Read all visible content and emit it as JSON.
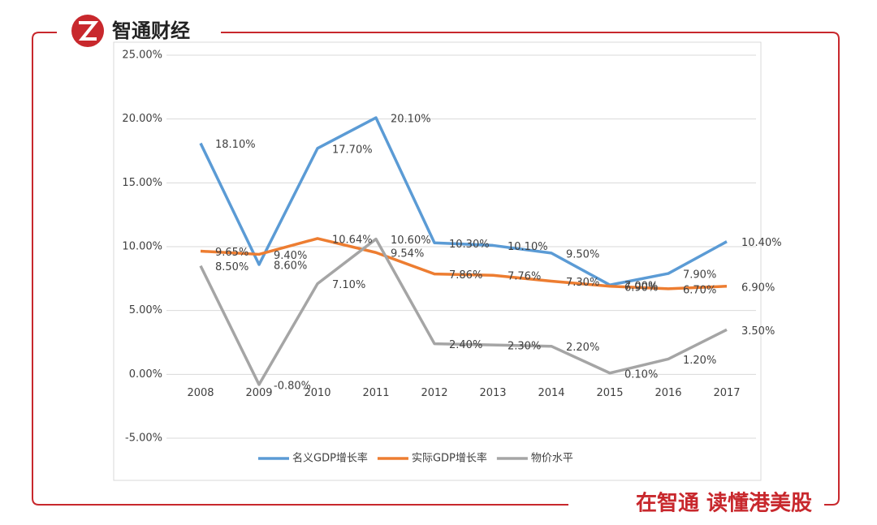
{
  "header": {
    "brand": "智通财经"
  },
  "footer": {
    "slogan": "在智通 读懂港美股"
  },
  "chart_data": {
    "type": "line",
    "categories": [
      "2008",
      "2009",
      "2010",
      "2011",
      "2012",
      "2013",
      "2014",
      "2015",
      "2016",
      "2017"
    ],
    "series": [
      {
        "name": "名义GDP增长率",
        "color": "#5b9bd5",
        "values": [
          18.1,
          8.6,
          17.7,
          20.1,
          10.3,
          10.1,
          9.5,
          7.0,
          7.9,
          10.4
        ],
        "value_labels": [
          "18.10%",
          "8.60%",
          "17.70%",
          "20.10%",
          "10.30%",
          "10.10%",
          "9.50%",
          "7.00%",
          "7.90%",
          "10.40%"
        ]
      },
      {
        "name": "实际GDP增长率",
        "color": "#ed7d31",
        "values": [
          9.65,
          9.4,
          10.64,
          9.54,
          7.86,
          7.76,
          7.3,
          6.9,
          6.7,
          6.9
        ],
        "value_labels": [
          "9.65%",
          "9.40%",
          "10.64%",
          "9.54%",
          "7.86%",
          "7.76%",
          "7.30%",
          "6.90%",
          "6.70%",
          "6.90%"
        ]
      },
      {
        "name": "物价水平",
        "color": "#a5a5a5",
        "values": [
          8.5,
          -0.8,
          7.1,
          10.6,
          2.4,
          2.3,
          2.2,
          0.1,
          1.2,
          3.5
        ],
        "value_labels": [
          "8.50%",
          "-0.80%",
          "7.10%",
          "10.60%",
          "2.40%",
          "2.30%",
          "2.20%",
          "0.10%",
          "1.20%",
          "3.50%"
        ]
      }
    ],
    "ylim": [
      -5,
      25
    ],
    "yticks": [
      {
        "value": -5,
        "label": "-5.00%"
      },
      {
        "value": 0,
        "label": "0.00%"
      },
      {
        "value": 5,
        "label": "5.00%"
      },
      {
        "value": 10,
        "label": "10.00%"
      },
      {
        "value": 15,
        "label": "15.00%"
      },
      {
        "value": 20,
        "label": "20.00%"
      },
      {
        "value": 25,
        "label": "25.00%"
      }
    ],
    "grid": true,
    "legend": "bottom"
  }
}
